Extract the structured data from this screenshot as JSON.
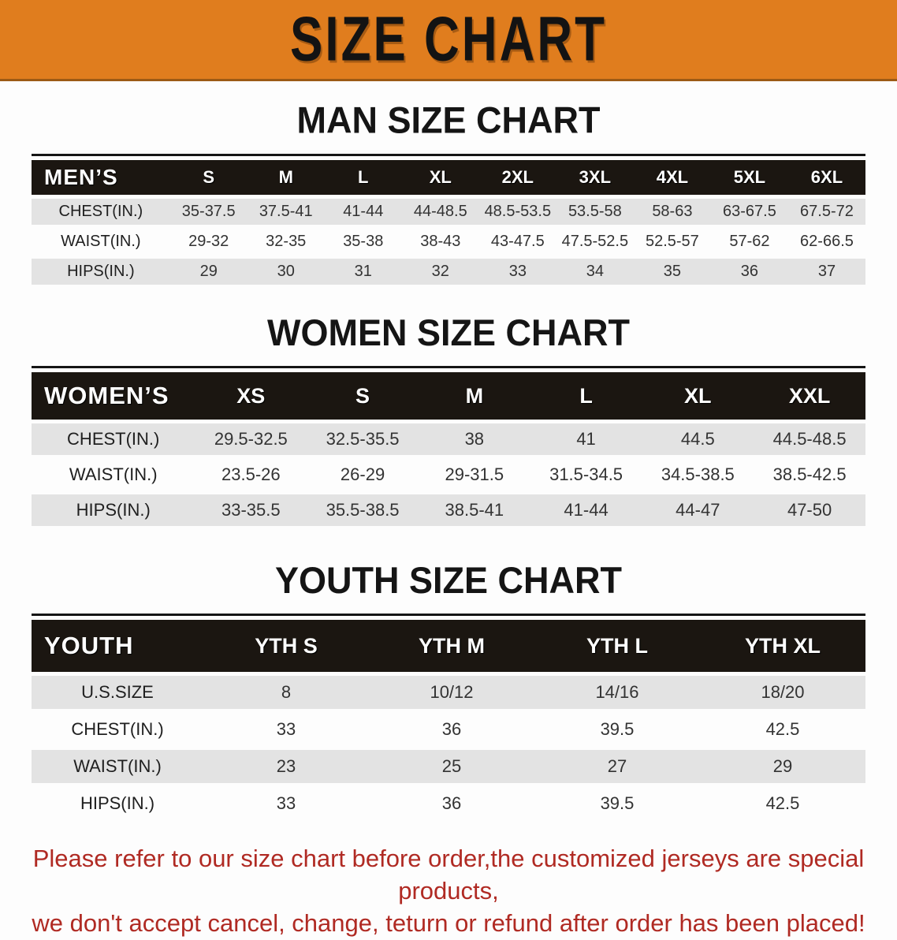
{
  "banner": {
    "title": "SIZE CHART"
  },
  "sections": [
    {
      "heading": "MAN SIZE CHART",
      "table": {
        "header": [
          "MEN’S",
          "S",
          "M",
          "L",
          "XL",
          "2XL",
          "3XL",
          "4XL",
          "5XL",
          "6XL"
        ],
        "rows": [
          {
            "label": "CHEST(IN.)",
            "values": [
              "35-37.5",
              "37.5-41",
              "41-44",
              "44-48.5",
              "48.5-53.5",
              "53.5-58",
              "58-63",
              "63-67.5",
              "67.5-72"
            ]
          },
          {
            "label": "WAIST(IN.)",
            "values": [
              "29-32",
              "32-35",
              "35-38",
              "38-43",
              "43-47.5",
              "47.5-52.5",
              "52.5-57",
              "57-62",
              "62-66.5"
            ]
          },
          {
            "label": "HIPS(IN.)",
            "values": [
              "29",
              "30",
              "31",
              "32",
              "33",
              "34",
              "35",
              "36",
              "37"
            ]
          }
        ]
      }
    },
    {
      "heading": "WOMEN SIZE CHART",
      "table": {
        "header": [
          "WOMEN’S",
          "XS",
          "S",
          "M",
          "L",
          "XL",
          "XXL"
        ],
        "rows": [
          {
            "label": "CHEST(IN.)",
            "values": [
              "29.5-32.5",
              "32.5-35.5",
              "38",
              "41",
              "44.5",
              "44.5-48.5"
            ]
          },
          {
            "label": "WAIST(IN.)",
            "values": [
              "23.5-26",
              "26-29",
              "29-31.5",
              "31.5-34.5",
              "34.5-38.5",
              "38.5-42.5"
            ]
          },
          {
            "label": "HIPS(IN.)",
            "values": [
              "33-35.5",
              "35.5-38.5",
              "38.5-41",
              "41-44",
              "44-47",
              "47-50"
            ]
          }
        ]
      }
    },
    {
      "heading": "YOUTH SIZE CHART",
      "table": {
        "header": [
          "YOUTH",
          "YTH S",
          "YTH M",
          "YTH L",
          "YTH XL"
        ],
        "rows": [
          {
            "label": "U.S.SIZE",
            "values": [
              "8",
              "10/12",
              "14/16",
              "18/20"
            ]
          },
          {
            "label": "CHEST(IN.)",
            "values": [
              "33",
              "36",
              "39.5",
              "42.5"
            ]
          },
          {
            "label": "WAIST(IN.)",
            "values": [
              "23",
              "25",
              "27",
              "29"
            ]
          },
          {
            "label": "HIPS(IN.)",
            "values": [
              "33",
              "36",
              "39.5",
              "42.5"
            ]
          }
        ]
      }
    }
  ],
  "note": {
    "line1": "Please refer to our size chart before order,the customized jerseys are special products,",
    "line2": "we don't accept cancel, change, teturn or refund after order has been placed!"
  },
  "colors": {
    "banner_bg": "#E07D1E",
    "table_header_bg": "#1B1611",
    "row_stripe": "#E3E3E3",
    "note_red": "#B02A23"
  }
}
